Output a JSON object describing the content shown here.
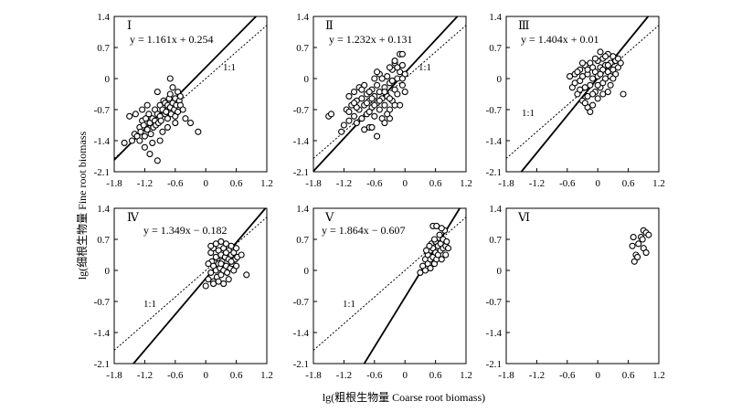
{
  "figure": {
    "ylabel": "lg(细根生物量 Fine root biomass",
    "xlabel": "lg(粗根生物量 Coarse root biomass)"
  },
  "chart_data": [
    {
      "type": "scatter",
      "panel": "Ⅰ",
      "equation": "y = 1.161x + 0.254",
      "slope": 1.161,
      "intercept": 0.254,
      "ref_label": "1:1",
      "xlim": [
        -1.8,
        1.2
      ],
      "ylim": [
        -2.1,
        1.4
      ],
      "xticks": [
        "-1.8",
        "-1.2",
        "-0.6",
        "0",
        "0.6",
        "1.2"
      ],
      "yticks": [
        "1.4",
        "0.7",
        "0",
        "-0.7",
        "-1.4",
        "-2.1"
      ],
      "points": [
        [
          -1.5,
          -0.85
        ],
        [
          -1.45,
          -1.4
        ],
        [
          -1.4,
          -1.25
        ],
        [
          -1.38,
          -0.8
        ],
        [
          -1.35,
          -1.3
        ],
        [
          -1.3,
          -1.1
        ],
        [
          -1.28,
          -1.2
        ],
        [
          -1.25,
          -0.95
        ],
        [
          -1.22,
          -1.05
        ],
        [
          -1.2,
          -1.3
        ],
        [
          -1.18,
          -0.9
        ],
        [
          -1.15,
          -1.15
        ],
        [
          -1.12,
          -0.8
        ],
        [
          -1.1,
          -1.0
        ],
        [
          -1.08,
          -1.25
        ],
        [
          -1.05,
          -0.9
        ],
        [
          -1.03,
          -1.1
        ],
        [
          -1.0,
          -0.7
        ],
        [
          -1.0,
          -0.95
        ],
        [
          -0.98,
          -1.05
        ],
        [
          -0.95,
          -0.8
        ],
        [
          -0.93,
          -1.0
        ],
        [
          -0.9,
          -0.6
        ],
        [
          -0.9,
          -0.85
        ],
        [
          -0.88,
          -0.95
        ],
        [
          -0.85,
          -0.7
        ],
        [
          -0.83,
          -0.5
        ],
        [
          -0.8,
          -0.8
        ],
        [
          -0.8,
          -0.55
        ],
        [
          -0.78,
          -0.75
        ],
        [
          -0.75,
          -0.6
        ],
        [
          -0.75,
          -0.9
        ],
        [
          -0.72,
          -0.45
        ],
        [
          -0.7,
          -0.65
        ],
        [
          -0.7,
          -0.35
        ],
        [
          -0.68,
          -0.8
        ],
        [
          -0.65,
          -0.55
        ],
        [
          -0.65,
          -0.2
        ],
        [
          -0.62,
          -0.7
        ],
        [
          -0.6,
          -0.45
        ],
        [
          -0.6,
          -0.85
        ],
        [
          -0.58,
          -0.6
        ],
        [
          -0.55,
          -0.3
        ],
        [
          -0.55,
          -0.75
        ],
        [
          -0.52,
          -0.5
        ],
        [
          -0.5,
          -0.4
        ],
        [
          -0.7,
          0.0
        ],
        [
          -0.95,
          -0.3
        ],
        [
          -1.1,
          -1.7
        ],
        [
          -0.95,
          -1.85
        ],
        [
          -1.2,
          -1.55
        ],
        [
          -1.3,
          -1.4
        ],
        [
          -0.4,
          -0.9
        ],
        [
          -0.3,
          -1.0
        ],
        [
          -0.15,
          -1.2
        ],
        [
          -1.6,
          -1.45
        ],
        [
          -0.85,
          -1.2
        ],
        [
          -0.9,
          -1.4
        ],
        [
          -1.05,
          -1.45
        ],
        [
          -0.75,
          -1.1
        ],
        [
          -0.6,
          -1.0
        ],
        [
          -0.5,
          -0.6
        ],
        [
          -0.45,
          -0.7
        ],
        [
          -1.25,
          -0.7
        ],
        [
          -1.15,
          -0.6
        ]
      ]
    },
    {
      "type": "scatter",
      "panel": "Ⅱ",
      "equation": "y = 1.232x + 0.131",
      "slope": 1.232,
      "intercept": 0.131,
      "ref_label": "1:1",
      "xlim": [
        -1.8,
        1.2
      ],
      "ylim": [
        -2.1,
        1.4
      ],
      "xticks": [
        "-1.8",
        "-1.2",
        "-0.6",
        "0",
        "0.6",
        "1.2"
      ],
      "yticks": [
        "1.4",
        "0.7",
        "0",
        "-0.7",
        "-1.4",
        "-2.1"
      ],
      "points": [
        [
          -1.5,
          -0.85
        ],
        [
          -1.45,
          -0.8
        ],
        [
          -1.25,
          -1.2
        ],
        [
          -1.2,
          -1.05
        ],
        [
          -1.15,
          -0.7
        ],
        [
          -1.1,
          -0.95
        ],
        [
          -1.1,
          -0.4
        ],
        [
          -1.05,
          -0.6
        ],
        [
          -1.0,
          -0.85
        ],
        [
          -1.0,
          -0.3
        ],
        [
          -0.95,
          -0.5
        ],
        [
          -0.95,
          -1.0
        ],
        [
          -0.9,
          -0.7
        ],
        [
          -0.9,
          -0.2
        ],
        [
          -0.85,
          -0.45
        ],
        [
          -0.85,
          -0.9
        ],
        [
          -0.8,
          -0.6
        ],
        [
          -0.8,
          -0.15
        ],
        [
          -0.75,
          -0.35
        ],
        [
          -0.75,
          -0.8
        ],
        [
          -0.7,
          -0.5
        ],
        [
          -0.7,
          -1.1
        ],
        [
          -0.65,
          -0.25
        ],
        [
          -0.65,
          -0.65
        ],
        [
          -0.6,
          -0.4
        ],
        [
          -0.6,
          -0.85
        ],
        [
          -0.6,
          0.0
        ],
        [
          -0.55,
          -0.55
        ],
        [
          -0.55,
          -0.15
        ],
        [
          -0.5,
          -0.7
        ],
        [
          -0.5,
          -0.3
        ],
        [
          -0.5,
          0.1
        ],
        [
          -0.45,
          -0.45
        ],
        [
          -0.45,
          -0.9
        ],
        [
          -0.4,
          -0.2
        ],
        [
          -0.4,
          -0.6
        ],
        [
          -0.35,
          0.05
        ],
        [
          -0.35,
          -0.4
        ],
        [
          -0.3,
          -0.7
        ],
        [
          -0.3,
          -0.1
        ],
        [
          -0.25,
          0.2
        ],
        [
          -0.25,
          -0.5
        ],
        [
          -0.2,
          -0.25
        ],
        [
          -0.2,
          0.35
        ],
        [
          -0.15,
          0.0
        ],
        [
          -0.15,
          -0.35
        ],
        [
          -0.1,
          0.15
        ],
        [
          -0.1,
          -0.6
        ],
        [
          -0.05,
          0.3
        ],
        [
          -0.05,
          -0.15
        ],
        [
          0.0,
          -0.3
        ],
        [
          0.0,
          0.1
        ],
        [
          -0.1,
          0.55
        ],
        [
          -0.2,
          0.4
        ],
        [
          -0.3,
          0.25
        ],
        [
          -0.05,
          0.55
        ],
        [
          -0.7,
          -0.3
        ],
        [
          -0.75,
          -0.55
        ],
        [
          -0.85,
          -0.25
        ],
        [
          -0.95,
          -0.65
        ],
        [
          -1.0,
          -0.55
        ],
        [
          -1.1,
          -0.75
        ],
        [
          -0.55,
          -1.3
        ],
        [
          -0.65,
          -1.1
        ],
        [
          -0.4,
          -1.0
        ],
        [
          -0.8,
          -1.15
        ],
        [
          -0.3,
          -0.9
        ],
        [
          -0.45,
          0.0
        ],
        [
          -0.55,
          0.15
        ],
        [
          -0.6,
          -0.6
        ],
        [
          -0.4,
          -0.3
        ],
        [
          -0.35,
          -0.8
        ],
        [
          -0.25,
          -0.05
        ],
        [
          -0.15,
          0.25
        ],
        [
          -0.05,
          0.0
        ],
        [
          -0.65,
          -0.45
        ],
        [
          -0.7,
          -0.75
        ],
        [
          -0.5,
          -0.5
        ],
        [
          -0.3,
          -0.45
        ],
        [
          -0.2,
          -0.6
        ]
      ]
    },
    {
      "type": "scatter",
      "panel": "Ⅲ",
      "equation": "y = 1.404x + 0.01",
      "slope": 1.404,
      "intercept": 0.01,
      "ref_label": "1:1",
      "xlim": [
        -1.8,
        1.2
      ],
      "ylim": [
        -2.1,
        1.4
      ],
      "xticks": [
        "-1.8",
        "-1.2",
        "-0.6",
        "0",
        "0.6",
        "1.2"
      ],
      "yticks": [
        "1.4",
        "0.7",
        "0",
        "-0.7",
        "-1.4",
        "-2.1"
      ],
      "points": [
        [
          -0.5,
          -0.2
        ],
        [
          -0.45,
          0.1
        ],
        [
          -0.4,
          -0.35
        ],
        [
          -0.35,
          -0.05
        ],
        [
          -0.35,
          0.2
        ],
        [
          -0.3,
          -0.5
        ],
        [
          -0.3,
          0.05
        ],
        [
          -0.25,
          -0.2
        ],
        [
          -0.25,
          0.3
        ],
        [
          -0.2,
          -0.4
        ],
        [
          -0.2,
          0.1
        ],
        [
          -0.15,
          -0.15
        ],
        [
          -0.15,
          0.35
        ],
        [
          -0.1,
          -0.6
        ],
        [
          -0.1,
          0.0
        ],
        [
          -0.1,
          0.25
        ],
        [
          -0.05,
          -0.3
        ],
        [
          -0.05,
          0.15
        ],
        [
          0.0,
          -0.45
        ],
        [
          0.0,
          0.05
        ],
        [
          0.0,
          0.4
        ],
        [
          0.05,
          -0.2
        ],
        [
          0.05,
          0.25
        ],
        [
          0.1,
          -0.1
        ],
        [
          0.1,
          0.45
        ],
        [
          0.15,
          0.0
        ],
        [
          0.15,
          0.3
        ],
        [
          0.2,
          -0.3
        ],
        [
          0.2,
          0.15
        ],
        [
          0.2,
          0.55
        ],
        [
          0.25,
          0.05
        ],
        [
          0.25,
          0.35
        ],
        [
          0.3,
          0.2
        ],
        [
          0.3,
          0.5
        ],
        [
          0.35,
          0.1
        ],
        [
          0.35,
          0.4
        ],
        [
          0.4,
          0.25
        ],
        [
          0.45,
          0.35
        ],
        [
          0.25,
          -0.15
        ],
        [
          0.1,
          0.2
        ],
        [
          -0.05,
          0.45
        ],
        [
          -0.3,
          0.35
        ],
        [
          -0.4,
          0.15
        ],
        [
          -0.2,
          -0.65
        ],
        [
          -0.15,
          -0.75
        ],
        [
          -0.25,
          -0.55
        ],
        [
          0.5,
          -0.35
        ],
        [
          0.05,
          0.6
        ],
        [
          -0.1,
          -0.35
        ],
        [
          0.0,
          -0.15
        ],
        [
          0.15,
          0.5
        ],
        [
          0.3,
          0.0
        ],
        [
          -0.35,
          -0.25
        ],
        [
          -0.45,
          -0.1
        ],
        [
          -0.55,
          0.05
        ],
        [
          0.05,
          0.1
        ],
        [
          -0.2,
          0.2
        ],
        [
          0.1,
          -0.35
        ],
        [
          0.4,
          0.45
        ],
        [
          0.2,
          0.3
        ]
      ]
    },
    {
      "type": "scatter",
      "panel": "Ⅳ",
      "equation": "y = 1.349x − 0.182",
      "slope": 1.349,
      "intercept": -0.182,
      "ref_label": "1:1",
      "xlim": [
        -1.8,
        1.2
      ],
      "ylim": [
        -2.1,
        1.4
      ],
      "xticks": [
        "-1.8",
        "-1.2",
        "-0.6",
        "0",
        "0.6",
        "1.2"
      ],
      "yticks": [
        "1.4",
        "0.7",
        "0",
        "-0.7",
        "-1.4",
        "-2.1"
      ],
      "points": [
        [
          0.0,
          -0.35
        ],
        [
          0.05,
          -0.2
        ],
        [
          0.1,
          -0.05
        ],
        [
          0.1,
          0.4
        ],
        [
          0.12,
          0.2
        ],
        [
          0.15,
          -0.25
        ],
        [
          0.15,
          0.1
        ],
        [
          0.15,
          0.5
        ],
        [
          0.2,
          0.0
        ],
        [
          0.2,
          0.3
        ],
        [
          0.22,
          -0.15
        ],
        [
          0.25,
          0.15
        ],
        [
          0.25,
          0.45
        ],
        [
          0.28,
          0.05
        ],
        [
          0.3,
          0.35
        ],
        [
          0.3,
          -0.1
        ],
        [
          0.32,
          0.2
        ],
        [
          0.35,
          0.5
        ],
        [
          0.35,
          0.0
        ],
        [
          0.38,
          0.3
        ],
        [
          0.4,
          0.1
        ],
        [
          0.4,
          0.6
        ],
        [
          0.42,
          -0.05
        ],
        [
          0.45,
          0.25
        ],
        [
          0.45,
          0.45
        ],
        [
          0.48,
          0.05
        ],
        [
          0.5,
          0.35
        ],
        [
          0.5,
          0.55
        ],
        [
          0.52,
          0.15
        ],
        [
          0.55,
          0.4
        ],
        [
          0.55,
          0.0
        ],
        [
          0.58,
          0.25
        ],
        [
          0.6,
          0.5
        ],
        [
          0.6,
          0.1
        ],
        [
          0.62,
          0.3
        ],
        [
          0.2,
          0.6
        ],
        [
          0.3,
          0.65
        ],
        [
          0.45,
          -0.2
        ],
        [
          0.25,
          -0.25
        ],
        [
          0.35,
          -0.3
        ],
        [
          0.15,
          -0.3
        ],
        [
          0.7,
          0.35
        ],
        [
          0.8,
          -0.1
        ],
        [
          0.05,
          0.15
        ],
        [
          0.1,
          0.55
        ],
        [
          0.4,
          0.4
        ],
        [
          0.5,
          0.2
        ],
        [
          0.3,
          0.15
        ]
      ]
    },
    {
      "type": "scatter",
      "panel": "Ⅴ",
      "equation": "y = 1.864x − 0.607",
      "slope": 1.864,
      "intercept": -0.607,
      "ref_label": "1:1",
      "xlim": [
        -1.8,
        1.2
      ],
      "ylim": [
        -2.1,
        1.4
      ],
      "xticks": [
        "-1.8",
        "-1.2",
        "-0.6",
        "0",
        "0.6",
        "1.2"
      ],
      "yticks": [
        "1.4",
        "0.7",
        "0",
        "-0.7",
        "-1.4",
        "-2.1"
      ],
      "points": [
        [
          0.3,
          -0.05
        ],
        [
          0.35,
          0.1
        ],
        [
          0.4,
          0.25
        ],
        [
          0.4,
          0.0
        ],
        [
          0.45,
          0.35
        ],
        [
          0.45,
          0.15
        ],
        [
          0.5,
          0.45
        ],
        [
          0.5,
          0.05
        ],
        [
          0.5,
          0.25
        ],
        [
          0.52,
          0.6
        ],
        [
          0.55,
          0.3
        ],
        [
          0.55,
          0.5
        ],
        [
          0.58,
          0.15
        ],
        [
          0.6,
          0.4
        ],
        [
          0.6,
          0.65
        ],
        [
          0.62,
          0.25
        ],
        [
          0.65,
          0.55
        ],
        [
          0.65,
          0.35
        ],
        [
          0.68,
          0.8
        ],
        [
          0.7,
          0.45
        ],
        [
          0.7,
          0.6
        ],
        [
          0.72,
          0.25
        ],
        [
          0.75,
          0.5
        ],
        [
          0.75,
          0.7
        ],
        [
          0.78,
          0.9
        ],
        [
          0.8,
          0.55
        ],
        [
          0.8,
          0.35
        ],
        [
          0.82,
          0.65
        ],
        [
          0.85,
          0.5
        ],
        [
          0.55,
          1.0
        ],
        [
          0.62,
          1.0
        ],
        [
          0.72,
          0.95
        ],
        [
          0.48,
          0.55
        ],
        [
          0.42,
          0.45
        ],
        [
          0.58,
          0.7
        ]
      ]
    },
    {
      "type": "scatter",
      "panel": "Ⅵ",
      "equation": "",
      "ref_label": "",
      "xlim": [
        -1.8,
        1.2
      ],
      "ylim": [
        -2.1,
        1.4
      ],
      "xticks": [
        "-1.8",
        "-1.2",
        "-0.6",
        "0",
        "0.6",
        "1.2"
      ],
      "yticks": [
        "1.4",
        "0.7",
        "0",
        "-0.7",
        "-1.4",
        "-2.1"
      ],
      "points": [
        [
          0.7,
          0.75
        ],
        [
          0.68,
          0.55
        ],
        [
          0.75,
          0.35
        ],
        [
          0.72,
          0.2
        ],
        [
          0.8,
          0.6
        ],
        [
          0.85,
          0.75
        ],
        [
          0.9,
          0.9
        ],
        [
          0.95,
          0.85
        ],
        [
          1.0,
          0.8
        ],
        [
          0.9,
          0.5
        ],
        [
          0.95,
          0.4
        ],
        [
          0.78,
          0.3
        ],
        [
          0.88,
          0.7
        ]
      ]
    }
  ]
}
